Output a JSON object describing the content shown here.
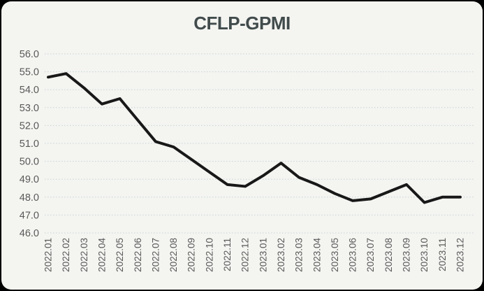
{
  "window": {
    "outer_background": "#000000",
    "card_background": "#f4f4f1"
  },
  "chart_data": {
    "type": "line",
    "title": "CFLP-GPMI",
    "title_color": "#414b4c",
    "categories": [
      "2022.01",
      "2022.02",
      "2022.03",
      "2022.04",
      "2022.05",
      "2022.06",
      "2022.07",
      "2022.08",
      "2022.09",
      "2022.10",
      "2022.11",
      "2022.12",
      "2023.01",
      "2023.02",
      "2023.03",
      "2023.04",
      "2023.05",
      "2023.06",
      "2023.07",
      "2023.08",
      "2023.09",
      "2023.10",
      "2023.11",
      "2023.12"
    ],
    "series": [
      {
        "name": "CFLP-GPMI",
        "values": [
          54.7,
          54.9,
          54.1,
          53.2,
          53.5,
          52.3,
          51.1,
          50.8,
          50.1,
          49.4,
          48.7,
          48.6,
          49.2,
          49.9,
          49.1,
          48.7,
          48.2,
          47.8,
          47.9,
          48.3,
          48.7,
          47.7,
          48.0,
          48.0
        ]
      }
    ],
    "xlabel": "",
    "ylabel": "",
    "ylim": [
      46.0,
      56.0
    ],
    "yticks": [
      56.0,
      55.0,
      54.0,
      53.0,
      52.0,
      51.0,
      50.0,
      49.0,
      48.0,
      47.0,
      46.0
    ],
    "ytick_format_decimals": 1,
    "grid": true,
    "gridline_style": "dotted",
    "gridline_color": "#c3d6d6",
    "axis_label_color": "#595959",
    "line_color": "#181818",
    "legend": "none",
    "x_label_rotation_degrees": 90
  }
}
